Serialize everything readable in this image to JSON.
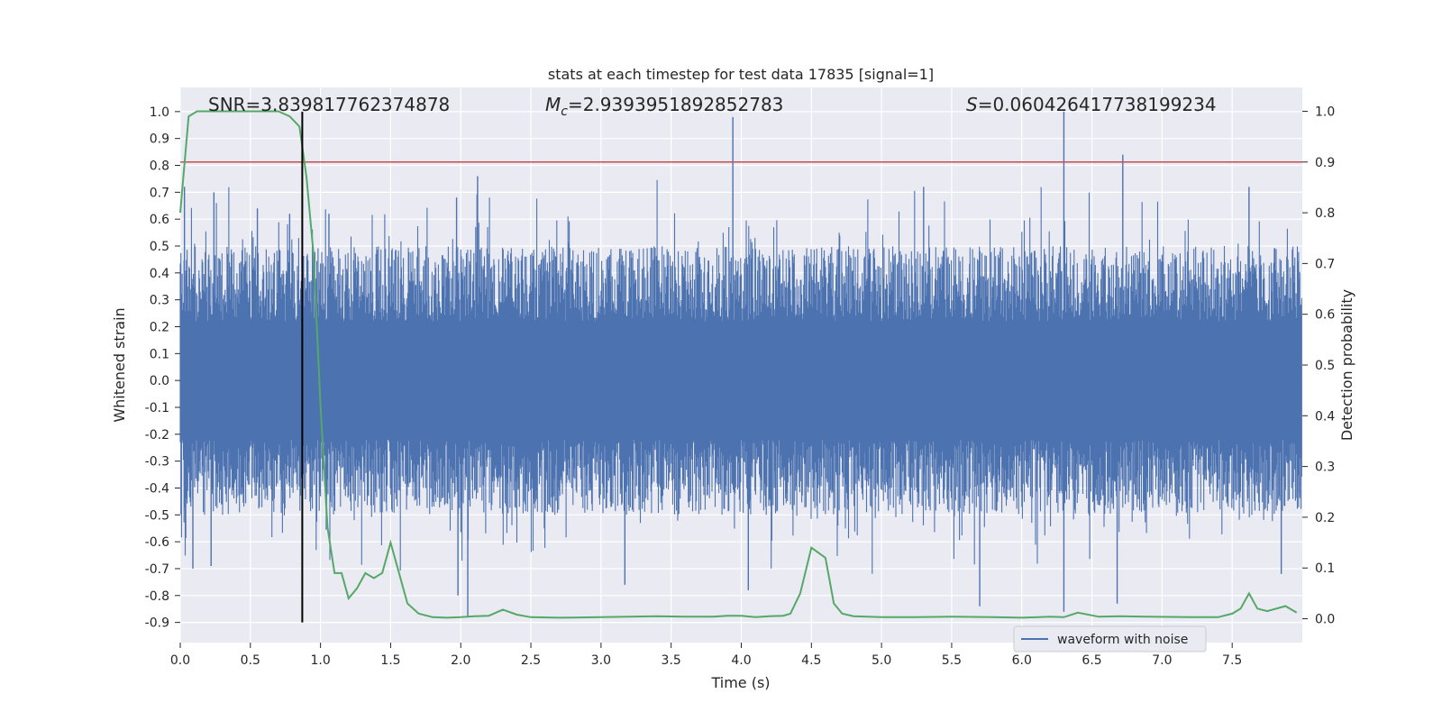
{
  "chart_data": {
    "type": "line",
    "title": "stats at each timestep for test data 17835 [signal=1]",
    "xlabel": "Time (s)",
    "ylabel_left": "Whitened strain",
    "ylabel_right": "Detection probability",
    "xlim": [
      0.0,
      8.0
    ],
    "ylim_left": [
      -0.975,
      1.09
    ],
    "ylim_right": [
      -0.047,
      1.047
    ],
    "x_ticks": [
      "0.0",
      "0.5",
      "1.0",
      "1.5",
      "2.0",
      "2.5",
      "3.0",
      "3.5",
      "4.0",
      "4.5",
      "5.0",
      "5.5",
      "6.0",
      "6.5",
      "7.0",
      "7.5"
    ],
    "y_left_ticks": [
      "1.0",
      "0.9",
      "0.8",
      "0.7",
      "0.6",
      "0.5",
      "0.4",
      "0.3",
      "0.2",
      "0.1",
      "0.0",
      "-0.1",
      "-0.2",
      "-0.3",
      "-0.4",
      "-0.5",
      "-0.6",
      "-0.7",
      "-0.8",
      "-0.9"
    ],
    "y_right_ticks": [
      "1.0",
      "0.9",
      "0.8",
      "0.7",
      "0.6",
      "0.5",
      "0.4",
      "0.3",
      "0.2",
      "0.1",
      "0.0"
    ],
    "grid": true,
    "legend_position": "lower-right",
    "annotations": {
      "snr": "SNR=3.839817762374878",
      "mc_prefix": "M",
      "mc_sub": "c",
      "mc_value": "=2.9393951892852783",
      "s_prefix": "S",
      "s_value": "=0.060426417738199234"
    },
    "series": [
      {
        "name": "waveform with noise",
        "axis": "left",
        "color": "#4c72b0",
        "note_band": [
          -0.35,
          0.35
        ],
        "peaks": [
          {
            "x": 0.03,
            "y": 0.72
          },
          {
            "x": 0.24,
            "y": 0.7
          },
          {
            "x": 0.55,
            "y": 0.64
          },
          {
            "x": 0.78,
            "y": 0.62
          },
          {
            "x": 1.06,
            "y": 0.62
          },
          {
            "x": 1.97,
            "y": 0.68
          },
          {
            "x": 2.12,
            "y": 0.76
          },
          {
            "x": 3.94,
            "y": 0.98
          },
          {
            "x": 5.3,
            "y": 0.72
          },
          {
            "x": 6.3,
            "y": 1.0
          },
          {
            "x": 6.72,
            "y": 0.84
          },
          {
            "x": 7.62,
            "y": 0.72
          }
        ],
        "troughs": [
          {
            "x": 0.09,
            "y": -0.7
          },
          {
            "x": 0.22,
            "y": -0.69
          },
          {
            "x": 1.98,
            "y": -0.8
          },
          {
            "x": 2.05,
            "y": -0.88
          },
          {
            "x": 3.17,
            "y": -0.76
          },
          {
            "x": 4.05,
            "y": -0.78
          },
          {
            "x": 5.7,
            "y": -0.84
          },
          {
            "x": 6.3,
            "y": -0.86
          },
          {
            "x": 6.68,
            "y": -0.83
          },
          {
            "x": 7.85,
            "y": -0.72
          }
        ]
      },
      {
        "name": "detection probability",
        "axis": "right",
        "color": "#55a868",
        "x": [
          0.0,
          0.06,
          0.12,
          0.2,
          0.3,
          0.4,
          0.5,
          0.6,
          0.7,
          0.78,
          0.85,
          0.9,
          0.95,
          1.0,
          1.05,
          1.1,
          1.15,
          1.2,
          1.26,
          1.32,
          1.38,
          1.44,
          1.5,
          1.55,
          1.62,
          1.7,
          1.8,
          1.9,
          2.0,
          2.1,
          2.2,
          2.3,
          2.4,
          2.5,
          2.7,
          3.0,
          3.2,
          3.4,
          3.6,
          3.8,
          3.9,
          4.0,
          4.1,
          4.2,
          4.3,
          4.35,
          4.42,
          4.5,
          4.55,
          4.6,
          4.66,
          4.72,
          4.8,
          5.0,
          5.2,
          5.5,
          5.8,
          6.0,
          6.2,
          6.3,
          6.4,
          6.55,
          6.7,
          6.9,
          7.2,
          7.4,
          7.5,
          7.56,
          7.62,
          7.68,
          7.75,
          7.88,
          7.96
        ],
        "y": [
          0.8,
          0.99,
          1.0,
          1.0,
          1.0,
          1.0,
          1.0,
          1.0,
          1.0,
          0.99,
          0.97,
          0.87,
          0.72,
          0.42,
          0.18,
          0.09,
          0.09,
          0.04,
          0.06,
          0.09,
          0.08,
          0.09,
          0.15,
          0.1,
          0.03,
          0.01,
          0.003,
          0.002,
          0.003,
          0.005,
          0.006,
          0.018,
          0.008,
          0.003,
          0.002,
          0.003,
          0.004,
          0.005,
          0.004,
          0.004,
          0.006,
          0.006,
          0.003,
          0.005,
          0.006,
          0.01,
          0.05,
          0.14,
          0.13,
          0.12,
          0.03,
          0.01,
          0.005,
          0.003,
          0.003,
          0.004,
          0.003,
          0.002,
          0.004,
          0.003,
          0.012,
          0.004,
          0.005,
          0.004,
          0.003,
          0.003,
          0.01,
          0.02,
          0.05,
          0.02,
          0.015,
          0.025,
          0.012
        ]
      }
    ],
    "reference_lines": {
      "threshold_right": 0.9,
      "threshold_color": "#c44e52",
      "marker_x": 0.87,
      "marker_color": "#000000"
    }
  }
}
